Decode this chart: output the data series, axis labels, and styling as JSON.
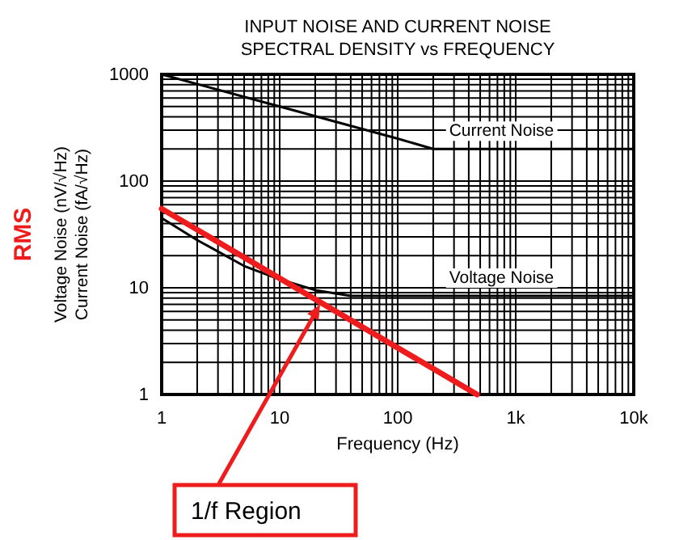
{
  "chart_data": {
    "type": "line",
    "title": "INPUT NOISE AND CURRENT NOISE\nSPECTRAL DENSITY vs FREQUENCY",
    "xlabel": "Frequency (Hz)",
    "ylabel": "Voltage Noise (nV/√Hz)\nCurrent Noise (fA/√Hz)",
    "log": "xy",
    "grid": true,
    "xlim": [
      1,
      10000
    ],
    "ylim": [
      1,
      1000
    ],
    "xticks": [
      1,
      10,
      100,
      {
        "value": 1000,
        "label": "1k"
      },
      {
        "value": 10000,
        "label": "10k"
      }
    ],
    "yticks": [
      1,
      10,
      100,
      1000
    ],
    "series": [
      {
        "name": "Current Noise",
        "color": "#000000",
        "x": [
          1,
          10,
          100,
          200,
          10000
        ],
        "values": [
          1000,
          500,
          250,
          200,
          200
        ]
      },
      {
        "name": "Voltage Noise",
        "color": "#000000",
        "x": [
          1,
          2,
          5,
          10,
          20,
          40,
          10000
        ],
        "values": [
          45,
          28,
          16,
          12,
          9.5,
          8.4,
          8.4
        ]
      },
      {
        "color": "#ee1c1c",
        "x": [
          1,
          470
        ],
        "values": [
          55,
          1
        ]
      }
    ],
    "annotations": [
      "RMS",
      {
        "text": "1/f Region",
        "x": 22,
        "y": 7
      }
    ]
  }
}
